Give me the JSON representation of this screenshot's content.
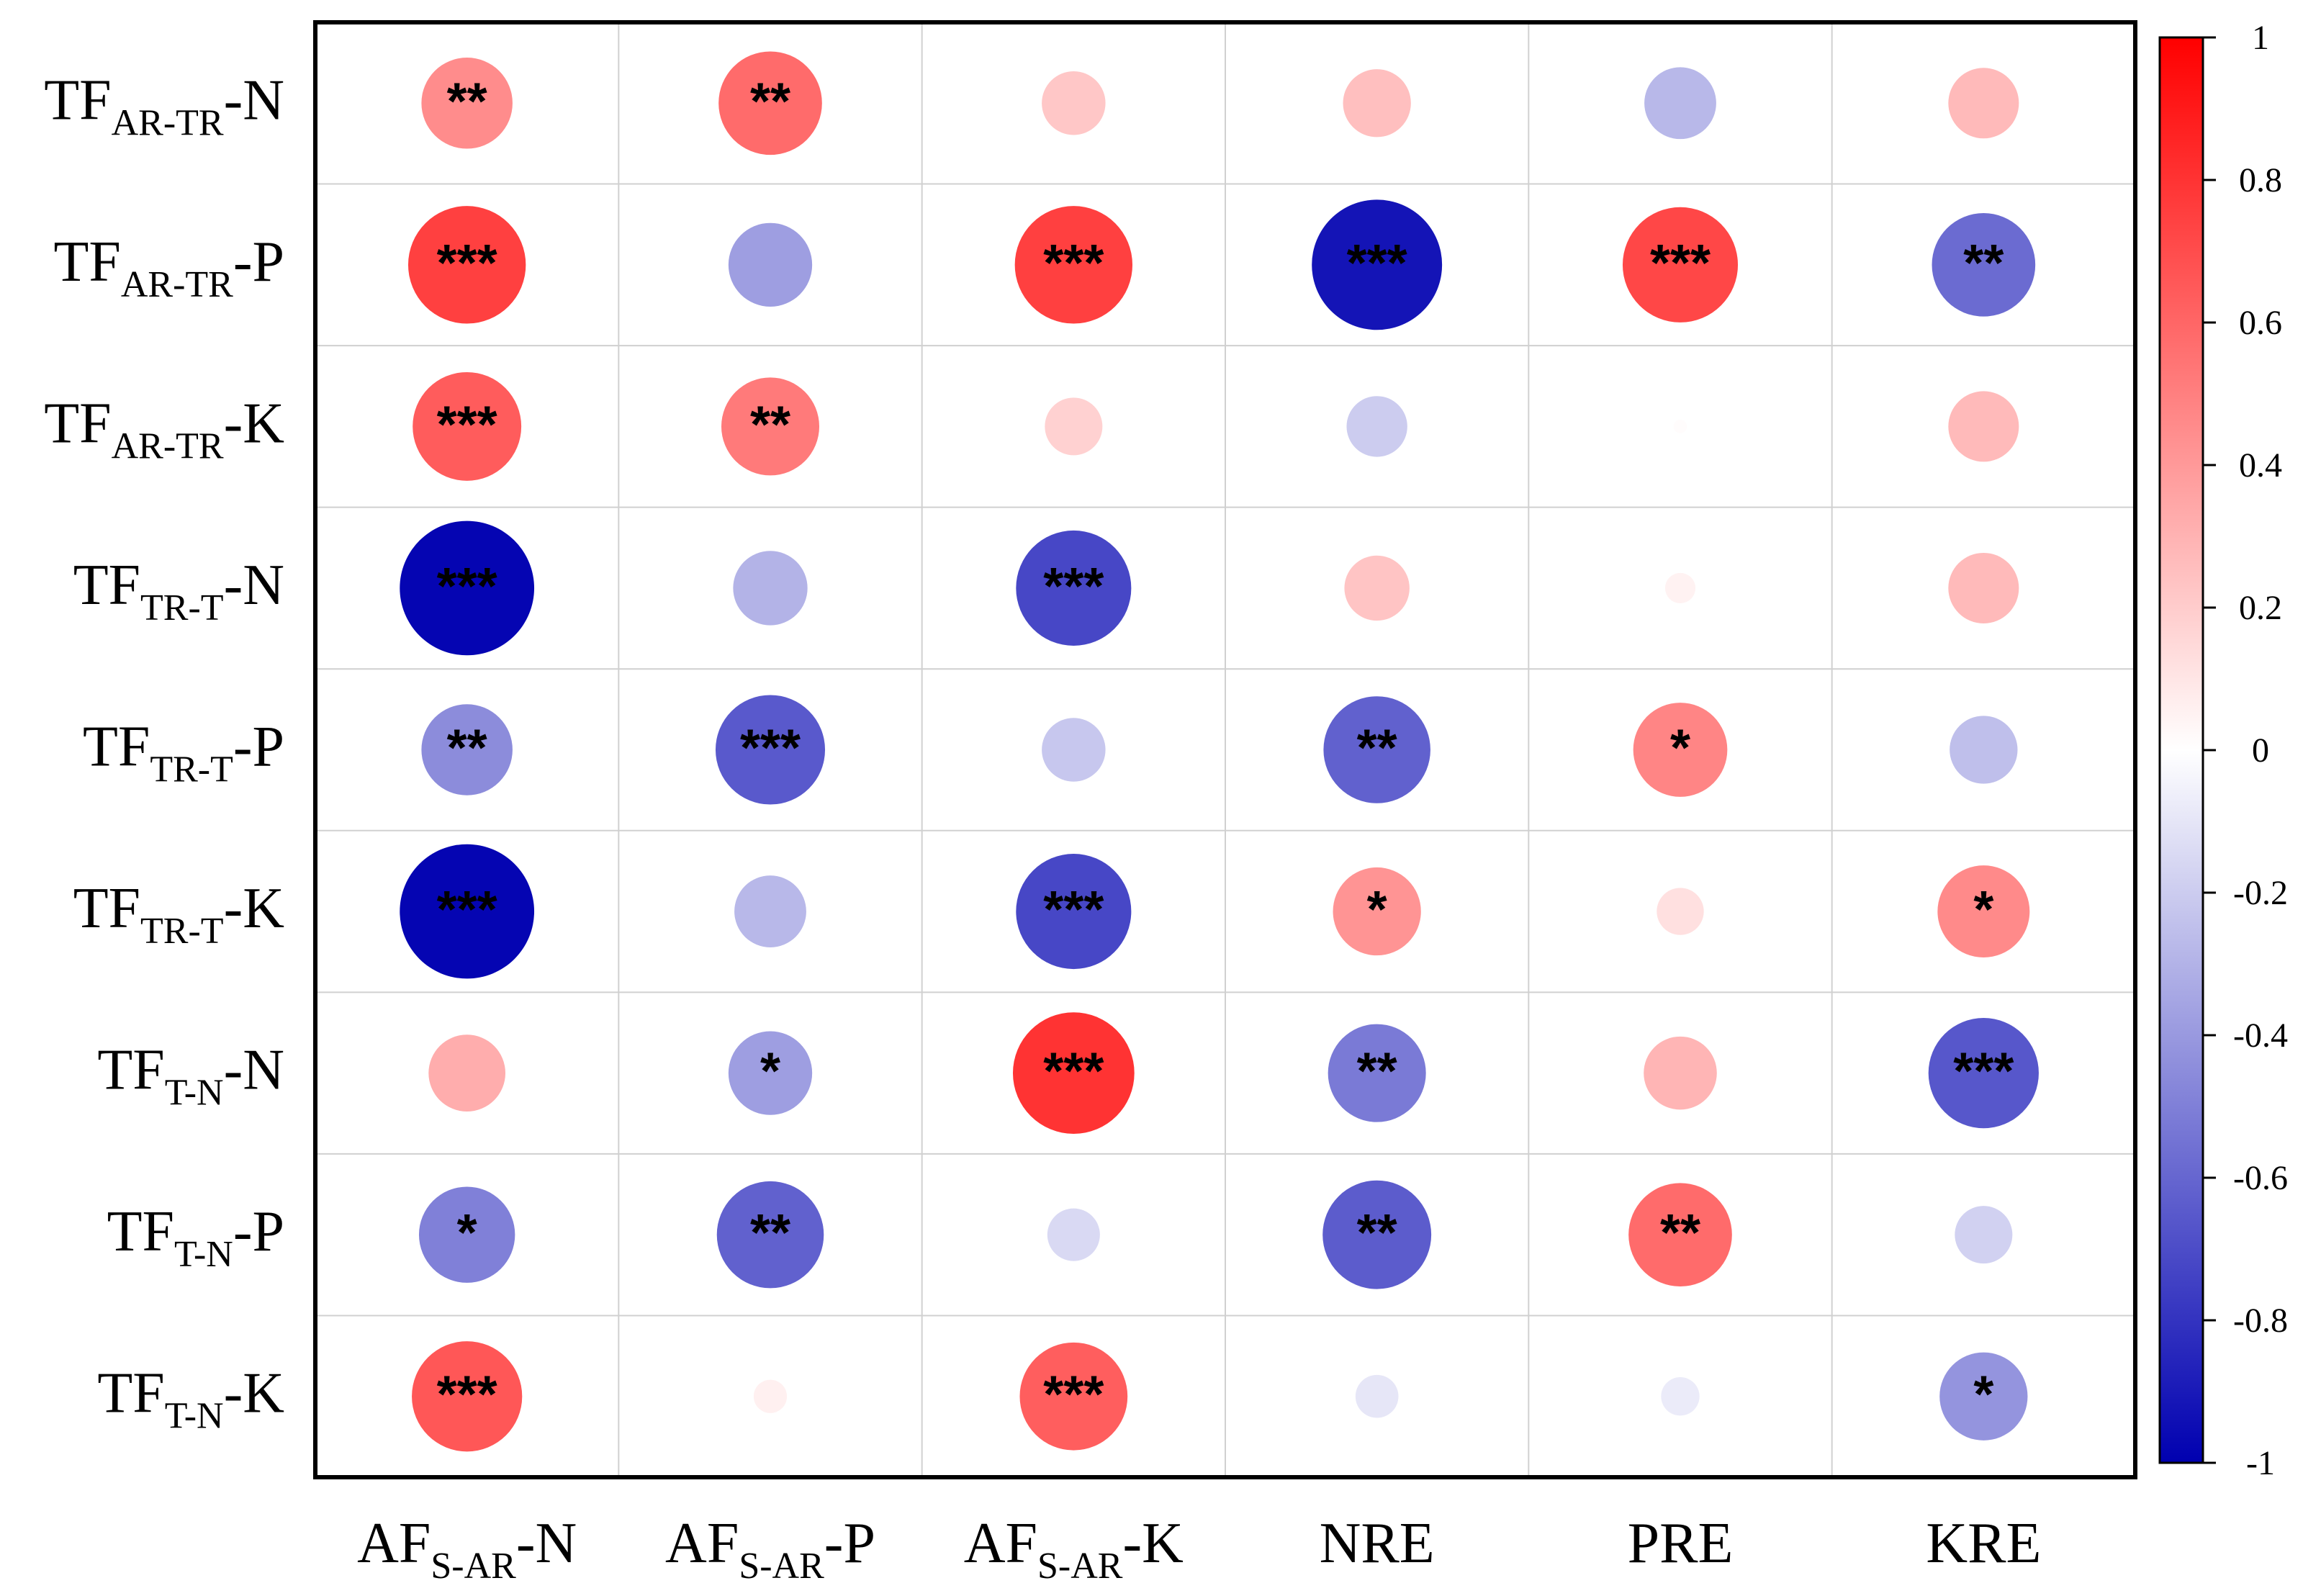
{
  "chart_data": {
    "type": "correlation-heatmap",
    "title": "",
    "rows": [
      {
        "base": "TF",
        "sub": "AR-TR",
        "suffix": "-N"
      },
      {
        "base": "TF",
        "sub": "AR-TR",
        "suffix": "-P"
      },
      {
        "base": "TF",
        "sub": "AR-TR",
        "suffix": "-K"
      },
      {
        "base": "TF",
        "sub": "TR-T",
        "suffix": "-N"
      },
      {
        "base": "TF",
        "sub": "TR-T",
        "suffix": "-P"
      },
      {
        "base": "TF",
        "sub": "TR-T",
        "suffix": "-K"
      },
      {
        "base": "TF",
        "sub": "T-N",
        "suffix": "-N"
      },
      {
        "base": "TF",
        "sub": "T-N",
        "suffix": "-P"
      },
      {
        "base": "TF",
        "sub": "T-N",
        "suffix": "-K"
      }
    ],
    "columns": [
      {
        "base": "AF",
        "sub": "S-AR",
        "suffix": "-N"
      },
      {
        "base": "AF",
        "sub": "S-AR",
        "suffix": "-P"
      },
      {
        "base": "AF",
        "sub": "S-AR",
        "suffix": "-K"
      },
      {
        "base": "NRE",
        "sub": "",
        "suffix": ""
      },
      {
        "base": "PRE",
        "sub": "",
        "suffix": ""
      },
      {
        "base": "KRE",
        "sub": "",
        "suffix": ""
      }
    ],
    "values": [
      [
        0.45,
        0.58,
        0.22,
        0.25,
        -0.28,
        0.27
      ],
      [
        0.75,
        -0.38,
        0.75,
        -0.92,
        0.72,
        -0.58
      ],
      [
        0.64,
        0.52,
        0.18,
        -0.2,
        0.01,
        0.27
      ],
      [
        -0.98,
        -0.3,
        -0.72,
        0.23,
        0.05,
        0.27
      ],
      [
        -0.45,
        -0.65,
        -0.22,
        -0.62,
        0.48,
        -0.25
      ],
      [
        -0.98,
        -0.28,
        -0.72,
        0.42,
        0.12,
        0.46
      ],
      [
        0.32,
        -0.38,
        0.8,
        -0.52,
        0.29,
        -0.66
      ],
      [
        -0.5,
        -0.62,
        -0.15,
        -0.64,
        0.58,
        -0.18
      ],
      [
        0.66,
        0.06,
        0.63,
        -0.1,
        -0.08,
        -0.42
      ]
    ],
    "significance": [
      [
        "**",
        "**",
        "",
        "",
        "",
        ""
      ],
      [
        "***",
        "",
        "***",
        "***",
        "***",
        "**"
      ],
      [
        "***",
        "**",
        "",
        "",
        "",
        ""
      ],
      [
        "***",
        "",
        "***",
        "",
        "",
        ""
      ],
      [
        "**",
        "***",
        "",
        "**",
        "*",
        ""
      ],
      [
        "***",
        "",
        "***",
        "*",
        "",
        "*"
      ],
      [
        "",
        "*",
        "***",
        "**",
        "",
        "***"
      ],
      [
        "*",
        "**",
        "",
        "**",
        "**",
        ""
      ],
      [
        "***",
        "",
        "***",
        "",
        "",
        "*"
      ]
    ],
    "colorbar": {
      "range": [
        -1,
        1
      ],
      "ticks": [
        "1",
        "0.8",
        "0.6",
        "0.4",
        "0.2",
        "0",
        "-0.2",
        "-0.4",
        "-0.6",
        "-0.8",
        "-1"
      ],
      "colors": {
        "negative": "#0000b0",
        "zero": "#ffffff",
        "positive": "#ff0000"
      }
    },
    "grid": true
  }
}
